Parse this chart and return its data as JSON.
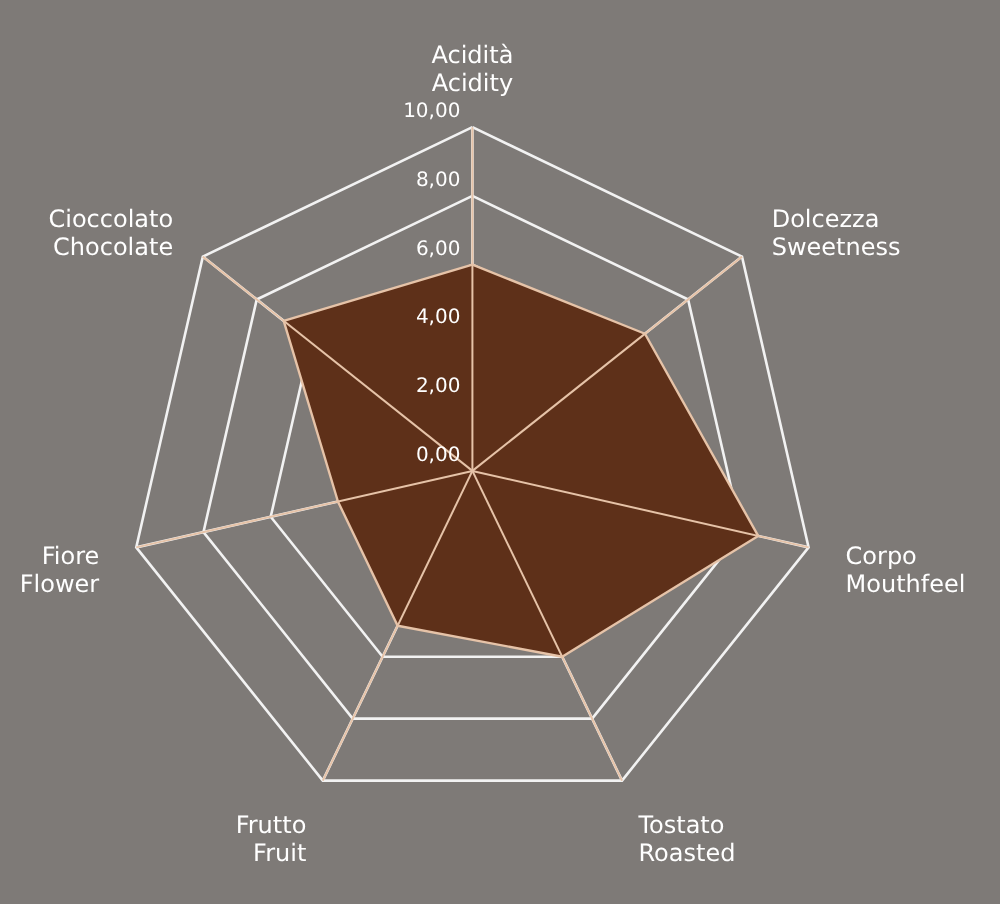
{
  "chart_data": {
    "type": "radar",
    "categories": [
      "Acidità\nAcidity",
      "Dolcezza\nSweetness",
      "Corpo\nMouthfeel",
      "Tostato\nRoasted",
      "Frutto\nFruit",
      "Fiore\nFlower",
      "Cioccolato\nChocolate"
    ],
    "series": [
      {
        "color": "#5e3019",
        "values": [
          6,
          6.4,
          8.5,
          6,
          5,
          4,
          7
        ]
      }
    ],
    "ylim": [
      0,
      10
    ],
    "yticks": [
      {
        "value": 0,
        "label": "0,00"
      },
      {
        "value": 2,
        "label": "2,00"
      },
      {
        "value": 4,
        "label": "4,00"
      },
      {
        "value": 6,
        "label": "6,00"
      },
      {
        "value": 8,
        "label": "8,00"
      },
      {
        "value": 10,
        "label": "10,00"
      }
    ],
    "grid": true
  }
}
